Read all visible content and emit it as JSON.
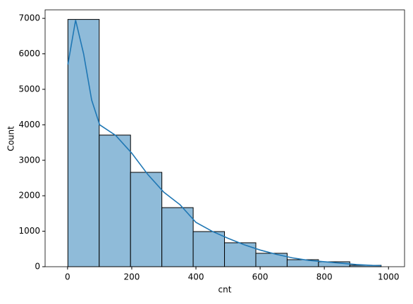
{
  "chart_data": {
    "type": "histogram",
    "xlabel": "cnt",
    "ylabel": "Count",
    "bins": [
      1,
      98.6,
      196.2,
      293.8,
      391.4,
      489,
      586.6,
      684.2,
      781.8,
      879.4,
      977
    ],
    "counts": [
      6970,
      3710,
      2660,
      1665,
      990,
      675,
      378,
      198,
      139,
      40
    ],
    "color": "#8fbbd9",
    "edgecolor": "#000000",
    "kde": {
      "color": "#1f77b4",
      "x": [
        1,
        25,
        50,
        75,
        100,
        150,
        200,
        250,
        300,
        350,
        400,
        450,
        500,
        550,
        600,
        650,
        700,
        750,
        800,
        850,
        900,
        950,
        977
      ],
      "y": [
        5700,
        6950,
        6000,
        4700,
        4000,
        3700,
        3200,
        2600,
        2100,
        1750,
        1250,
        1000,
        800,
        620,
        470,
        350,
        250,
        180,
        140,
        100,
        60,
        35,
        30
      ]
    },
    "xlim": [
      -70,
      1050
    ],
    "ylim": [
      0,
      7240
    ],
    "xticks": [
      0,
      200,
      400,
      600,
      800,
      1000
    ],
    "yticks": [
      0,
      1000,
      2000,
      3000,
      4000,
      5000,
      6000,
      7000
    ]
  }
}
